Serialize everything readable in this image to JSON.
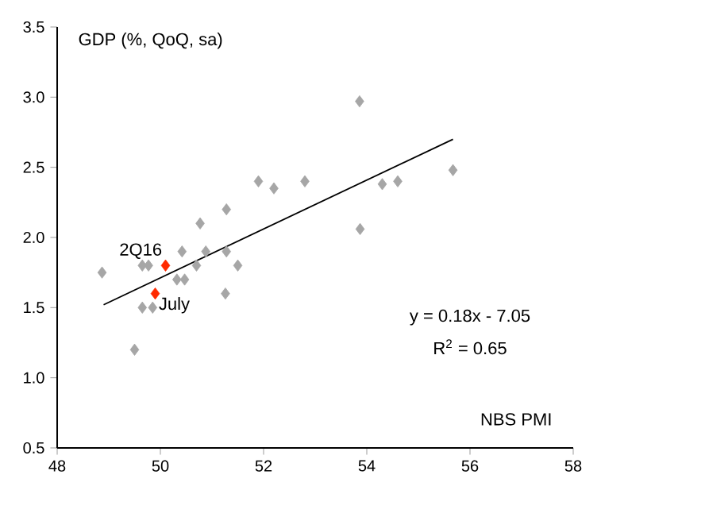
{
  "chart_data": {
    "type": "scatter",
    "ylabel": "GDP (%, QoQ, sa)",
    "xlabel": "NBS PMI",
    "xlim": [
      48,
      58
    ],
    "xticks": [
      48,
      50,
      52,
      54,
      56,
      58
    ],
    "ylim": [
      0.5,
      3.5
    ],
    "yticks": [
      {
        "value": 0.5,
        "label": "0.5"
      },
      {
        "value": 1,
        "label": "1.0"
      },
      {
        "value": 1.5,
        "label": "1.5"
      },
      {
        "value": 2,
        "label": "2.0"
      },
      {
        "value": 2.5,
        "label": "2.5"
      },
      {
        "value": 3,
        "label": "3.0"
      },
      {
        "value": 3.5,
        "label": "3.5"
      }
    ],
    "marker": "diamond",
    "series": [
      {
        "color": "#a6a6a6",
        "x": [
          48.87,
          49.65,
          49.77,
          49.65,
          49.85,
          49.5,
          50.42,
          50.32,
          50.47,
          50.7,
          50.77,
          50.88,
          51.28,
          51.28,
          51.26,
          51.5,
          51.9,
          52.2,
          52.8,
          53.86,
          53.87,
          54.3,
          54.6,
          55.67
        ],
        "values": [
          1.75,
          1.8,
          1.8,
          1.5,
          1.5,
          1.2,
          1.9,
          1.7,
          1.7,
          1.8,
          2.1,
          1.9,
          1.9,
          2.2,
          1.6,
          1.8,
          2.4,
          2.35,
          2.4,
          2.97,
          2.06,
          2.38,
          2.4,
          2.48
        ]
      },
      {
        "color": "#ff2a00",
        "x": [
          50.1,
          49.9
        ],
        "values": [
          1.8,
          1.6
        ]
      },
      {
        "type": "line",
        "color": "#000000",
        "marker": "none",
        "x": [
          48.9,
          55.67
        ],
        "values": [
          1.52,
          2.7
        ]
      }
    ],
    "annotations": [
      {
        "text": "2Q16",
        "x": 50.1,
        "y": 1.8
      },
      {
        "text": "July",
        "x": 49.9,
        "y": 1.6
      },
      "y = 0.18x - 7.05",
      "R$^{2}$ = 0.65"
    ]
  }
}
